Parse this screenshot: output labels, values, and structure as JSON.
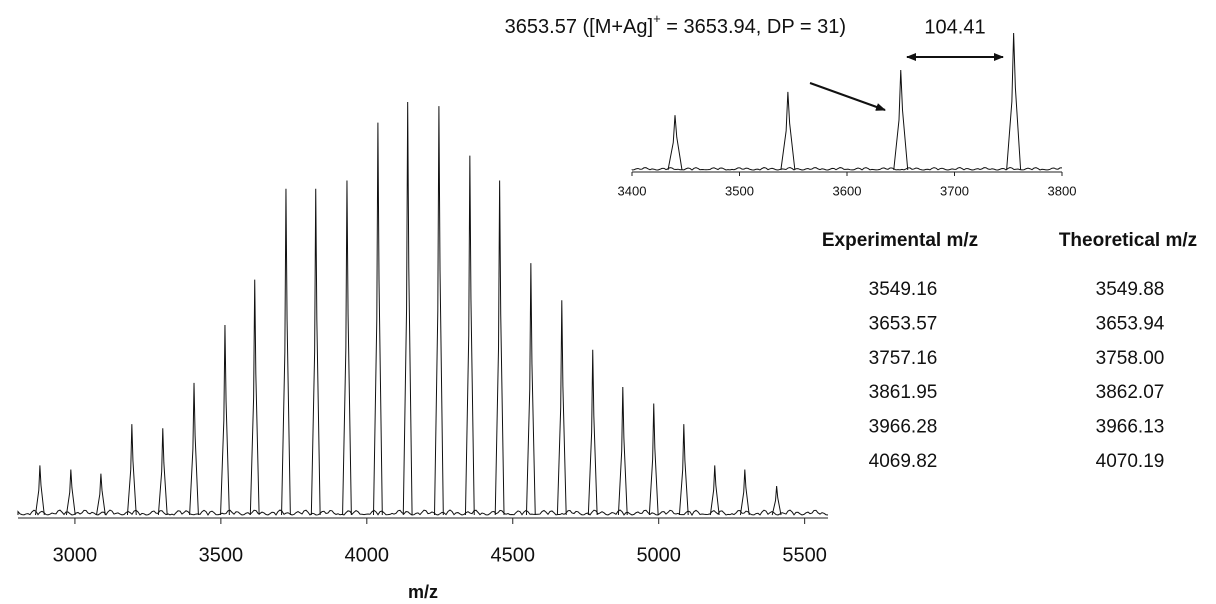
{
  "chart_data": [
    {
      "type": "spectrum",
      "x_label": "m/z",
      "x": [
        2880,
        2986,
        3089,
        3195,
        3301,
        3408,
        3514,
        3616,
        3723,
        3825,
        3932,
        4038,
        4140,
        4247,
        4353,
        4455,
        4562,
        4668,
        4774,
        4877,
        4983,
        5086,
        5192,
        5295,
        5404
      ],
      "values": [
        12,
        11,
        10,
        22,
        21,
        32,
        46,
        57,
        79,
        79,
        81,
        95,
        100,
        99,
        87,
        81,
        61,
        52,
        40,
        31,
        27,
        22,
        12,
        11,
        7
      ],
      "color": "#111111",
      "xlim": [
        2805,
        5580
      ],
      "xticks": [
        3000,
        3500,
        4000,
        4500,
        5000,
        5500
      ]
    },
    {
      "type": "spectrum",
      "x": [
        3440,
        3545,
        3650,
        3755
      ],
      "values": [
        40,
        57,
        73,
        100
      ],
      "color": "#111111",
      "xlim": [
        3400,
        3800
      ],
      "xticks": [
        3400,
        3500,
        3600,
        3700,
        3800
      ],
      "annotations": {
        "peak_label": "3653.57 ([M+Ag]",
        "peak_label_sup": "+",
        "peak_label_rest": " = 3653.94, DP = 31)",
        "spacing": "104.41"
      }
    }
  ],
  "table": {
    "header": [
      "Experimental m/z",
      "Theoretical m/z"
    ],
    "rows": [
      [
        "3549.16",
        "3549.88"
      ],
      [
        "3653.57",
        "3653.94"
      ],
      [
        "3757.16",
        "3758.00"
      ],
      [
        "3861.95",
        "3862.07"
      ],
      [
        "3966.28",
        "3966.13"
      ],
      [
        "4069.82",
        "4070.19"
      ]
    ]
  }
}
